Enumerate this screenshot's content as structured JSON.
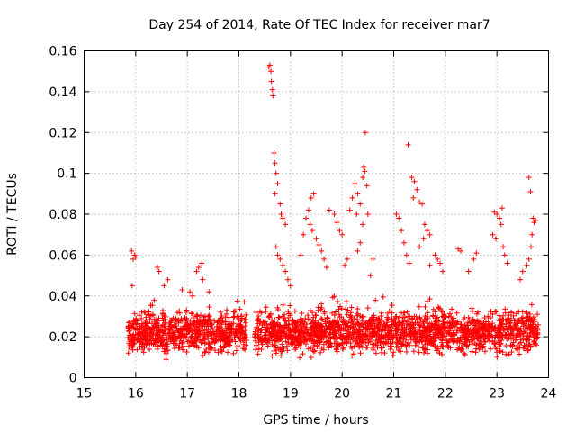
{
  "chart_data": {
    "type": "scatter",
    "title": "Day 254 of 2014, Rate Of TEC Index for receiver mar7",
    "xlabel": "GPS time / hours",
    "ylabel": "ROTI / TECUs",
    "xlim": [
      15,
      24
    ],
    "ylim": [
      0,
      0.16
    ],
    "grid": true,
    "marker": "plus",
    "color": "#ff0000",
    "x_ticks": [
      15,
      16,
      17,
      18,
      19,
      20,
      21,
      22,
      23,
      24
    ],
    "x_tick_labels": [
      "15",
      "16",
      "17",
      "18",
      "19",
      "20",
      "21",
      "22",
      "23",
      "24"
    ],
    "y_ticks": [
      0,
      0.02,
      0.04,
      0.06,
      0.08,
      0.1,
      0.12,
      0.14,
      0.16
    ],
    "y_tick_labels": [
      "0",
      "0.02",
      "0.04",
      "0.06",
      "0.08",
      "0.1",
      "0.12",
      "0.14",
      "0.16"
    ],
    "dense_band": {
      "x_start": 15.85,
      "x_end": 23.8,
      "gap": [
        18.15,
        18.3
      ],
      "y_low": 0.008,
      "y_high": 0.035
    },
    "points": [
      [
        15.92,
        0.062
      ],
      [
        15.95,
        0.058
      ],
      [
        15.98,
        0.06
      ],
      [
        16.0,
        0.059
      ],
      [
        15.93,
        0.045
      ],
      [
        16.42,
        0.054
      ],
      [
        16.45,
        0.052
      ],
      [
        16.62,
        0.048
      ],
      [
        16.55,
        0.045
      ],
      [
        16.9,
        0.043
      ],
      [
        17.05,
        0.042
      ],
      [
        17.1,
        0.04
      ],
      [
        17.18,
        0.052
      ],
      [
        17.22,
        0.054
      ],
      [
        17.28,
        0.056
      ],
      [
        17.3,
        0.048
      ],
      [
        17.42,
        0.042
      ],
      [
        18.6,
        0.153
      ],
      [
        18.62,
        0.15
      ],
      [
        18.58,
        0.152
      ],
      [
        18.63,
        0.145
      ],
      [
        18.65,
        0.141
      ],
      [
        18.66,
        0.138
      ],
      [
        18.68,
        0.11
      ],
      [
        18.7,
        0.105
      ],
      [
        18.72,
        0.1
      ],
      [
        18.75,
        0.095
      ],
      [
        18.7,
        0.09
      ],
      [
        18.8,
        0.085
      ],
      [
        18.82,
        0.08
      ],
      [
        18.85,
        0.078
      ],
      [
        18.9,
        0.075
      ],
      [
        18.72,
        0.064
      ],
      [
        18.75,
        0.06
      ],
      [
        18.8,
        0.058
      ],
      [
        18.85,
        0.055
      ],
      [
        18.9,
        0.052
      ],
      [
        18.95,
        0.048
      ],
      [
        19.0,
        0.045
      ],
      [
        19.3,
        0.078
      ],
      [
        19.35,
        0.082
      ],
      [
        19.4,
        0.088
      ],
      [
        19.45,
        0.09
      ],
      [
        19.38,
        0.075
      ],
      [
        19.42,
        0.072
      ],
      [
        19.5,
        0.068
      ],
      [
        19.55,
        0.065
      ],
      [
        19.6,
        0.062
      ],
      [
        19.25,
        0.07
      ],
      [
        19.2,
        0.06
      ],
      [
        19.75,
        0.082
      ],
      [
        19.85,
        0.08
      ],
      [
        19.9,
        0.076
      ],
      [
        19.95,
        0.072
      ],
      [
        20.0,
        0.07
      ],
      [
        20.25,
        0.095
      ],
      [
        20.3,
        0.09
      ],
      [
        20.35,
        0.085
      ],
      [
        20.2,
        0.088
      ],
      [
        20.15,
        0.082
      ],
      [
        20.28,
        0.08
      ],
      [
        20.45,
        0.12
      ],
      [
        20.42,
        0.103
      ],
      [
        20.44,
        0.101
      ],
      [
        20.4,
        0.098
      ],
      [
        20.48,
        0.094
      ],
      [
        20.5,
        0.08
      ],
      [
        20.4,
        0.075
      ],
      [
        20.35,
        0.066
      ],
      [
        20.3,
        0.062
      ],
      [
        20.6,
        0.058
      ],
      [
        20.55,
        0.05
      ],
      [
        20.1,
        0.058
      ],
      [
        20.05,
        0.055
      ],
      [
        19.65,
        0.058
      ],
      [
        19.7,
        0.054
      ],
      [
        21.05,
        0.08
      ],
      [
        21.1,
        0.078
      ],
      [
        21.15,
        0.072
      ],
      [
        21.2,
        0.066
      ],
      [
        21.25,
        0.06
      ],
      [
        21.3,
        0.056
      ],
      [
        21.28,
        0.114
      ],
      [
        21.35,
        0.098
      ],
      [
        21.4,
        0.096
      ],
      [
        21.45,
        0.092
      ],
      [
        21.38,
        0.088
      ],
      [
        21.5,
        0.086
      ],
      [
        21.55,
        0.085
      ],
      [
        21.6,
        0.075
      ],
      [
        21.65,
        0.072
      ],
      [
        21.7,
        0.07
      ],
      [
        21.58,
        0.068
      ],
      [
        21.5,
        0.064
      ],
      [
        21.8,
        0.06
      ],
      [
        21.85,
        0.058
      ],
      [
        21.9,
        0.056
      ],
      [
        21.95,
        0.052
      ],
      [
        21.7,
        0.055
      ],
      [
        22.25,
        0.063
      ],
      [
        22.3,
        0.062
      ],
      [
        22.6,
        0.061
      ],
      [
        22.55,
        0.058
      ],
      [
        22.45,
        0.052
      ],
      [
        22.95,
        0.081
      ],
      [
        23.0,
        0.08
      ],
      [
        23.05,
        0.078
      ],
      [
        23.1,
        0.083
      ],
      [
        23.08,
        0.075
      ],
      [
        22.92,
        0.07
      ],
      [
        22.98,
        0.068
      ],
      [
        23.12,
        0.064
      ],
      [
        23.15,
        0.06
      ],
      [
        23.2,
        0.056
      ],
      [
        23.62,
        0.098
      ],
      [
        23.65,
        0.091
      ],
      [
        23.7,
        0.078
      ],
      [
        23.72,
        0.076
      ],
      [
        23.75,
        0.077
      ],
      [
        23.68,
        0.07
      ],
      [
        23.66,
        0.064
      ],
      [
        23.62,
        0.058
      ],
      [
        23.58,
        0.055
      ],
      [
        23.5,
        0.052
      ],
      [
        23.45,
        0.048
      ]
    ]
  }
}
